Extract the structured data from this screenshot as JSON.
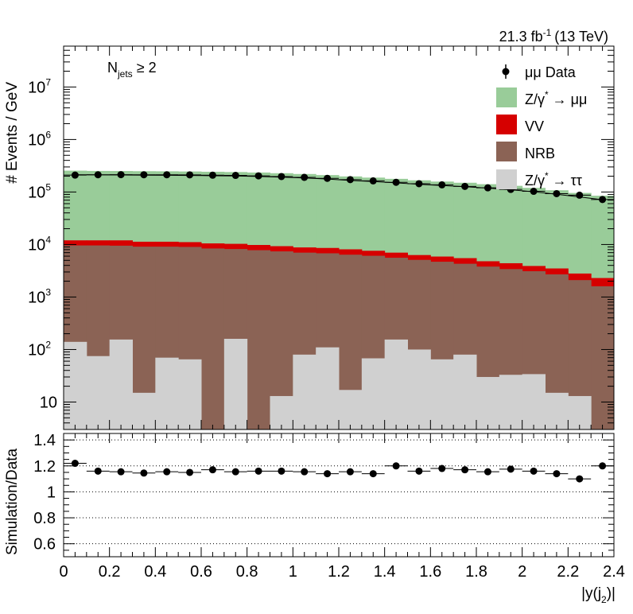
{
  "chart_data": {
    "type": "bar",
    "stacked": true,
    "lumi_label": "21.3 fb",
    "lumi_exp": "-1",
    "energy_label": "(13 TeV)",
    "category_label_main": "N",
    "category_label_sub": "jets",
    "category_label_rest": " ≥ 2",
    "main": {
      "ylabel": "# Events / GeV",
      "yscale": "log",
      "ylim": [
        3,
        60000000
      ],
      "yticks": [
        {
          "value": 10,
          "base": "10",
          "exp": ""
        },
        {
          "value": 100,
          "base": "10",
          "exp": "2"
        },
        {
          "value": 1000,
          "base": "10",
          "exp": "3"
        },
        {
          "value": 10000,
          "base": "10",
          "exp": "4"
        },
        {
          "value": 100000,
          "base": "10",
          "exp": "5"
        },
        {
          "value": 1000000,
          "base": "10",
          "exp": "6"
        },
        {
          "value": 10000000,
          "base": "10",
          "exp": "7"
        }
      ],
      "bin_edges": [
        0,
        0.1,
        0.2,
        0.3,
        0.4,
        0.5,
        0.6,
        0.7,
        0.8,
        0.9,
        1.0,
        1.1,
        1.2,
        1.3,
        1.4,
        1.5,
        1.6,
        1.7,
        1.8,
        1.9,
        2.0,
        2.1,
        2.2,
        2.3,
        2.4
      ],
      "stack_tops": {
        "Z/gamma* to tautau": [
          140,
          75,
          155,
          15,
          70,
          65,
          3,
          160,
          3,
          13,
          80,
          110,
          17,
          68,
          155,
          100,
          65,
          80,
          30,
          33,
          34,
          15,
          13,
          3
        ],
        "NRB": [
          9600,
          9600,
          9500,
          9100,
          9100,
          9000,
          8400,
          8200,
          7800,
          7400,
          7000,
          6800,
          6400,
          6100,
          5600,
          5100,
          4700,
          4300,
          3800,
          3400,
          3100,
          2700,
          2100,
          1600
        ],
        "VV": [
          12000,
          12000,
          12000,
          11300,
          11300,
          11100,
          10500,
          10300,
          9800,
          9300,
          8800,
          8600,
          8100,
          7600,
          7000,
          6300,
          5900,
          5500,
          4800,
          4400,
          3900,
          3500,
          2800,
          2300
        ],
        "Z/gamma* to mumu": [
          255000,
          252000,
          251000,
          249000,
          248000,
          246000,
          243000,
          240000,
          235000,
          228000,
          220000,
          210000,
          198000,
          188000,
          178000,
          167000,
          158000,
          150000,
          141000,
          131000,
          120000,
          108000,
          96000,
          85000
        ]
      },
      "data_y": [
        210000,
        213000,
        214000,
        213000,
        213000,
        212000,
        209000,
        207000,
        203000,
        197000,
        190000,
        182000,
        172000,
        163000,
        153000,
        144000,
        137000,
        128000,
        120000,
        112000,
        103000,
        93000,
        87000,
        72000
      ]
    },
    "ratio": {
      "ylabel": "Simulation/Data",
      "xlabel": "|y(j",
      "xlabel_sub": "2",
      "xlabel_end": ")|",
      "ylim": [
        0.5,
        1.45
      ],
      "yticks": [
        "0.6",
        "0.8",
        "1",
        "1.2",
        "1.4"
      ],
      "ytick_values": [
        0.6,
        0.8,
        1.0,
        1.2,
        1.4
      ],
      "grid_dotted": true,
      "values": [
        1.22,
        1.16,
        1.155,
        1.145,
        1.155,
        1.15,
        1.17,
        1.155,
        1.16,
        1.16,
        1.155,
        1.14,
        1.155,
        1.14,
        1.2,
        1.16,
        1.18,
        1.17,
        1.155,
        1.175,
        1.16,
        1.14,
        1.1,
        1.2
      ]
    },
    "xticks": [
      "0",
      "0.2",
      "0.4",
      "0.6",
      "0.8",
      "1",
      "1.2",
      "1.4",
      "1.6",
      "1.8",
      "2",
      "2.2",
      "2.4"
    ],
    "xtick_values": [
      0,
      0.2,
      0.4,
      0.6,
      0.8,
      1.0,
      1.2,
      1.4,
      1.6,
      1.8,
      2.0,
      2.2,
      2.4
    ],
    "xlim": [
      0,
      2.4
    ],
    "legend": {
      "placement": "top-right",
      "entries": [
        {
          "key": "data",
          "text": "μμ Data",
          "color": "#000000"
        },
        {
          "key": "zmumu",
          "text": "Z/γ",
          "sup": "*",
          "after": " → μμ",
          "color": "#99cc99"
        },
        {
          "key": "vv",
          "text": "VV",
          "color": "#d60000"
        },
        {
          "key": "nrb",
          "text": "NRB",
          "color": "#8b6355"
        },
        {
          "key": "ztautau",
          "text": "Z/γ",
          "sup": "*",
          "after": " → ττ",
          "color": "#d0d0d0"
        }
      ]
    },
    "colors": {
      "zmumu": "#99cc99",
      "vv": "#d60000",
      "nrb": "#8b6355",
      "ztautau": "#d0d0d0",
      "data": "#000000"
    }
  }
}
